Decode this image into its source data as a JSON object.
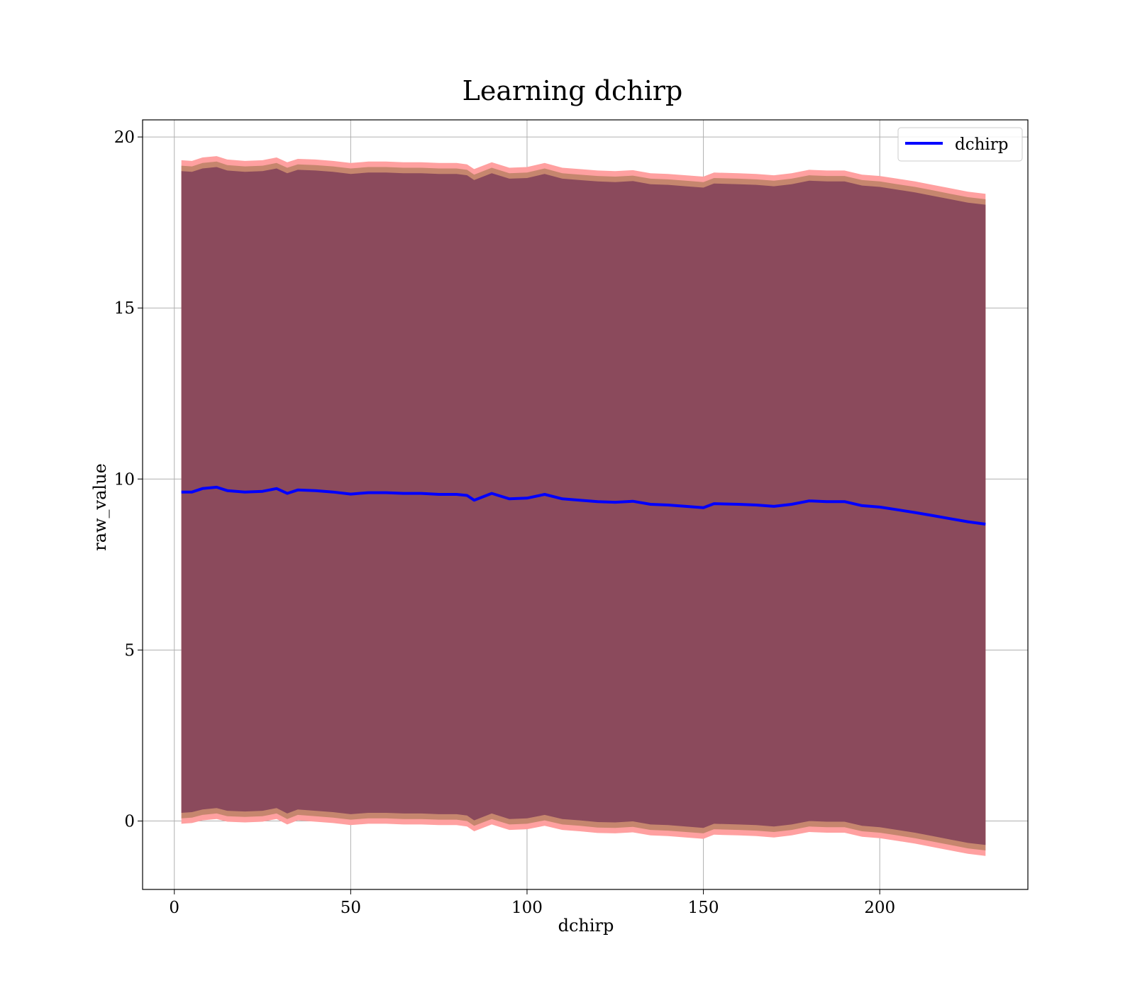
{
  "chart_data": {
    "type": "area",
    "title": "Learning dchirp",
    "xlabel": "dchirp",
    "ylabel": "raw_value",
    "xlim": [
      -9,
      242
    ],
    "ylim": [
      -2.0,
      20.5
    ],
    "x_ticks": [
      0,
      50,
      100,
      150,
      200
    ],
    "y_ticks": [
      0,
      5,
      10,
      15,
      20
    ],
    "x_tick_labels": [
      "0",
      "50",
      "100",
      "150",
      "200"
    ],
    "y_tick_labels": [
      "0",
      "5",
      "10",
      "15",
      "20"
    ],
    "grid": true,
    "legend": {
      "position": "top-right",
      "entries": [
        "dchirp"
      ]
    },
    "colors": {
      "line": "#0000ff",
      "inner_band": "#8b4a5c",
      "middle_band": "#c6866e",
      "outer_band": "#ffa0a0"
    },
    "x": [
      2,
      5,
      8,
      12,
      15,
      20,
      25,
      29,
      32,
      35,
      40,
      45,
      50,
      55,
      60,
      65,
      70,
      75,
      80,
      83,
      85,
      90,
      95,
      100,
      105,
      110,
      115,
      120,
      125,
      130,
      135,
      140,
      145,
      150,
      153,
      160,
      165,
      170,
      175,
      180,
      185,
      190,
      195,
      200,
      205,
      210,
      215,
      220,
      225,
      230
    ],
    "series": [
      {
        "name": "dchirp",
        "values": [
          9.62,
          9.62,
          9.72,
          9.76,
          9.66,
          9.62,
          9.64,
          9.72,
          9.58,
          9.68,
          9.66,
          9.62,
          9.56,
          9.6,
          9.6,
          9.58,
          9.58,
          9.55,
          9.55,
          9.52,
          9.38,
          9.58,
          9.42,
          9.44,
          9.55,
          9.42,
          9.38,
          9.34,
          9.32,
          9.35,
          9.26,
          9.24,
          9.2,
          9.16,
          9.28,
          9.26,
          9.24,
          9.2,
          9.26,
          9.36,
          9.34,
          9.34,
          9.22,
          9.18,
          9.1,
          9.02,
          8.93,
          8.84,
          8.75,
          8.68
        ]
      }
    ],
    "bands": [
      {
        "name": "outer",
        "lower": [
          -0.08,
          -0.06,
          0.02,
          0.06,
          -0.02,
          -0.04,
          -0.02,
          0.06,
          -0.1,
          0.02,
          -0.02,
          -0.06,
          -0.12,
          -0.08,
          -0.08,
          -0.1,
          -0.1,
          -0.12,
          -0.12,
          -0.16,
          -0.3,
          -0.1,
          -0.26,
          -0.24,
          -0.14,
          -0.26,
          -0.3,
          -0.35,
          -0.36,
          -0.33,
          -0.42,
          -0.44,
          -0.48,
          -0.52,
          -0.4,
          -0.42,
          -0.44,
          -0.48,
          -0.42,
          -0.32,
          -0.34,
          -0.34,
          -0.46,
          -0.5,
          -0.58,
          -0.66,
          -0.76,
          -0.86,
          -0.96,
          -1.02
        ],
        "upper": [
          19.32,
          19.3,
          19.4,
          19.44,
          19.34,
          19.3,
          19.32,
          19.4,
          19.26,
          19.36,
          19.34,
          19.3,
          19.24,
          19.28,
          19.28,
          19.26,
          19.26,
          19.24,
          19.24,
          19.2,
          19.06,
          19.26,
          19.1,
          19.12,
          19.24,
          19.1,
          19.06,
          19.02,
          19.0,
          19.03,
          18.94,
          18.92,
          18.88,
          18.84,
          18.96,
          18.94,
          18.92,
          18.88,
          18.94,
          19.04,
          19.02,
          19.02,
          18.9,
          18.86,
          18.78,
          18.7,
          18.6,
          18.5,
          18.4,
          18.34
        ]
      },
      {
        "name": "middle",
        "lower": [
          0.08,
          0.1,
          0.18,
          0.22,
          0.14,
          0.12,
          0.14,
          0.22,
          0.06,
          0.18,
          0.14,
          0.1,
          0.04,
          0.08,
          0.08,
          0.06,
          0.06,
          0.04,
          0.04,
          0.0,
          -0.14,
          0.06,
          -0.1,
          -0.08,
          0.02,
          -0.1,
          -0.14,
          -0.19,
          -0.2,
          -0.17,
          -0.26,
          -0.28,
          -0.32,
          -0.36,
          -0.24,
          -0.26,
          -0.28,
          -0.32,
          -0.26,
          -0.16,
          -0.18,
          -0.18,
          -0.3,
          -0.34,
          -0.42,
          -0.5,
          -0.6,
          -0.7,
          -0.8,
          -0.86
        ],
        "upper": [
          19.16,
          19.14,
          19.24,
          19.28,
          19.18,
          19.14,
          19.16,
          19.24,
          19.1,
          19.2,
          19.18,
          19.14,
          19.08,
          19.12,
          19.12,
          19.1,
          19.1,
          19.08,
          19.08,
          19.04,
          18.9,
          19.1,
          18.94,
          18.96,
          19.08,
          18.94,
          18.9,
          18.86,
          18.84,
          18.87,
          18.78,
          18.76,
          18.72,
          18.68,
          18.8,
          18.78,
          18.76,
          18.72,
          18.78,
          18.88,
          18.86,
          18.86,
          18.74,
          18.7,
          18.62,
          18.54,
          18.44,
          18.34,
          18.24,
          18.18
        ]
      },
      {
        "name": "inner",
        "lower": [
          0.24,
          0.26,
          0.34,
          0.38,
          0.3,
          0.28,
          0.3,
          0.38,
          0.22,
          0.34,
          0.3,
          0.26,
          0.2,
          0.24,
          0.24,
          0.22,
          0.22,
          0.2,
          0.2,
          0.16,
          0.02,
          0.22,
          0.06,
          0.08,
          0.18,
          0.06,
          0.02,
          -0.03,
          -0.04,
          -0.01,
          -0.1,
          -0.12,
          -0.16,
          -0.2,
          -0.08,
          -0.1,
          -0.12,
          -0.16,
          -0.1,
          0.0,
          -0.02,
          -0.02,
          -0.14,
          -0.18,
          -0.26,
          -0.34,
          -0.44,
          -0.54,
          -0.64,
          -0.7
        ],
        "upper": [
          19.0,
          18.98,
          19.08,
          19.12,
          19.02,
          18.98,
          19.0,
          19.08,
          18.94,
          19.04,
          19.02,
          18.98,
          18.92,
          18.96,
          18.96,
          18.94,
          18.94,
          18.92,
          18.92,
          18.88,
          18.74,
          18.94,
          18.78,
          18.8,
          18.92,
          18.78,
          18.74,
          18.7,
          18.68,
          18.71,
          18.62,
          18.6,
          18.56,
          18.52,
          18.64,
          18.62,
          18.6,
          18.56,
          18.62,
          18.72,
          18.7,
          18.7,
          18.58,
          18.54,
          18.46,
          18.38,
          18.28,
          18.18,
          18.08,
          18.02
        ]
      }
    ]
  }
}
